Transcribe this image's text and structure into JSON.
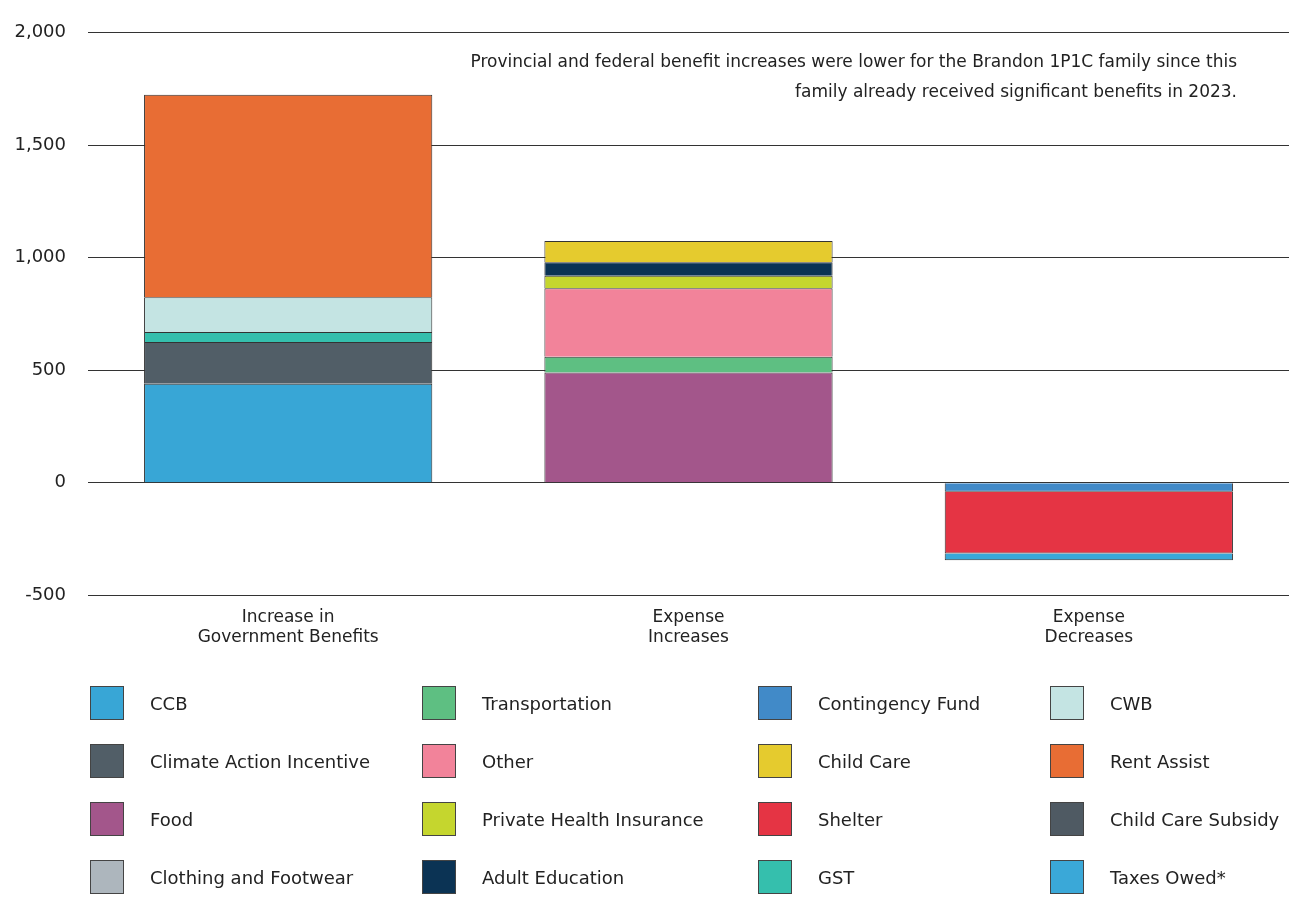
{
  "chart_data": {
    "type": "bar",
    "stacked": true,
    "categories": [
      "Increase in Government Benefits",
      "Expense Increases",
      "Expense Decreases"
    ],
    "series": [
      {
        "name": "CCB",
        "color": "#38a6d6",
        "values": [
          440,
          null,
          null
        ]
      },
      {
        "name": "Climate Action Incentive",
        "color": "#515e67",
        "values": [
          185,
          null,
          null
        ]
      },
      {
        "name": "Food",
        "color": "#a3568b",
        "values": [
          null,
          490,
          null
        ]
      },
      {
        "name": "Clothing and Footwear",
        "color": "#adb6bd",
        "values": [
          null,
          null,
          null
        ]
      },
      {
        "name": "Transportation",
        "color": "#5ebf82",
        "values": [
          null,
          70,
          null
        ]
      },
      {
        "name": "Other",
        "color": "#f2839a",
        "values": [
          null,
          305,
          null
        ]
      },
      {
        "name": "Private Health Insurance",
        "color": "#c5d62e",
        "values": [
          null,
          55,
          null
        ]
      },
      {
        "name": "Adult Education",
        "color": "#0b3354",
        "values": [
          null,
          60,
          null
        ]
      },
      {
        "name": "Contingency Fund",
        "color": "#418ac8",
        "values": [
          null,
          null,
          -40
        ]
      },
      {
        "name": "Child Care",
        "color": "#e5cb2e",
        "values": [
          null,
          95,
          null
        ]
      },
      {
        "name": "Shelter",
        "color": "#e53444",
        "values": [
          null,
          null,
          -275
        ]
      },
      {
        "name": "GST",
        "color": "#35bfad",
        "values": [
          45,
          null,
          null
        ]
      },
      {
        "name": "CWB",
        "color": "#c4e4e3",
        "values": [
          155,
          null,
          null
        ]
      },
      {
        "name": "Rent Assist",
        "color": "#e86d34",
        "values": [
          900,
          null,
          null
        ]
      },
      {
        "name": "Child Care Subsidy",
        "color": "#4f5a63",
        "values": [
          null,
          null,
          null
        ]
      },
      {
        "name": "Taxes Owed*",
        "color": "#3aa8d8",
        "values": [
          null,
          null,
          -30
        ]
      }
    ],
    "ylim": [
      -500,
      2000
    ],
    "yticks": [
      -500,
      0,
      500,
      {
        "value": 1000,
        "label": "1,000"
      },
      {
        "value": 1500,
        "label": "1,500"
      },
      {
        "value": 2000,
        "label": "2,000"
      }
    ],
    "grid": "y",
    "legend": "bottom",
    "annotations": [
      "Provincial and federal benefit increases were lower for the Brandon 1P1C family since this family already received significant benefits in 2023."
    ]
  }
}
